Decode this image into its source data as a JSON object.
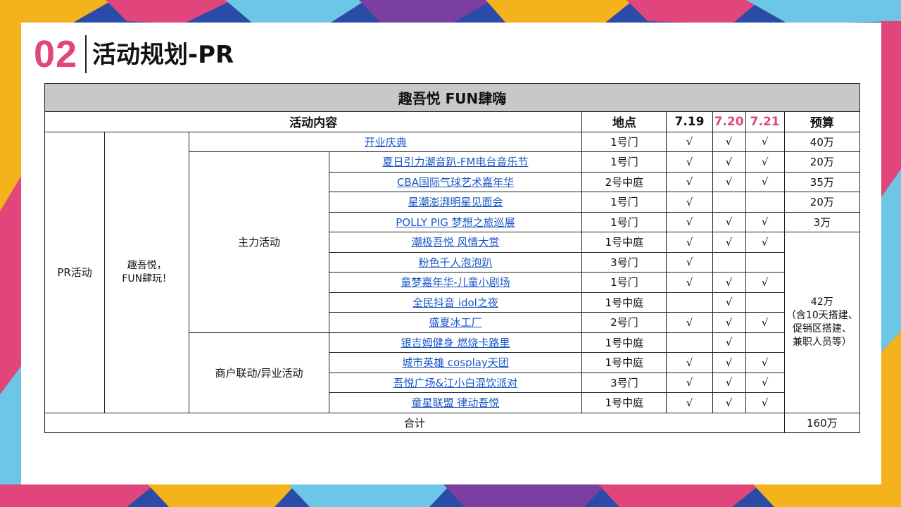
{
  "slide": {
    "number": "02",
    "title": "活动规划-PR"
  },
  "table": {
    "title": "趣吾悦 FUN肆嗨",
    "headers": {
      "content": "活动内容",
      "location": "地点",
      "d1": "7.19",
      "d2": "7.20",
      "d3": "7.21",
      "budget": "预算"
    },
    "category": "PR活动",
    "theme": "趣吾悦，\nFUN肆玩！",
    "groups": {
      "main": "主力活动",
      "merchant": "商户联动/异业活动"
    },
    "check": "√",
    "rows": [
      {
        "name": "开业庆典",
        "location": "1号门",
        "d1": "√",
        "d2": "√",
        "d3": "√",
        "budget": "40万"
      },
      {
        "name": "夏日引力潮音趴-FM电台音乐节",
        "location": "1号门",
        "d1": "√",
        "d2": "√",
        "d3": "√",
        "budget": "20万"
      },
      {
        "name": "CBA国际气球艺术嘉年华",
        "location": "2号中庭",
        "d1": "√",
        "d2": "√",
        "d3": "√",
        "budget": "35万"
      },
      {
        "name": "星潮澎湃明星见面会",
        "location": "1号门",
        "d1": "√",
        "d2": "",
        "d3": "",
        "budget": "20万"
      },
      {
        "name": "POLLY PIG 梦想之旅巡展",
        "location": "1号门",
        "d1": "√",
        "d2": "√",
        "d3": "√",
        "budget": "3万"
      },
      {
        "name": "潮极吾悦 风情大赏",
        "location": "1号中庭",
        "d1": "√",
        "d2": "√",
        "d3": "√"
      },
      {
        "name": "粉色千人泡泡趴",
        "location": "3号门",
        "d1": "√",
        "d2": "",
        "d3": ""
      },
      {
        "name": "童梦嘉年华-儿童小剧场",
        "location": "1号门",
        "d1": "√",
        "d2": "√",
        "d3": "√"
      },
      {
        "name": "全民抖音 idol之夜",
        "location": "1号中庭",
        "d1": "",
        "d2": "√",
        "d3": ""
      },
      {
        "name": "盛夏冰工厂",
        "location": "2号门",
        "d1": "√",
        "d2": "√",
        "d3": "√"
      },
      {
        "name": "银吉姆健身 燃烧卡路里",
        "location": "1号中庭",
        "d1": "",
        "d2": "√",
        "d3": ""
      },
      {
        "name": "城市英雄 cosplay天团",
        "location": "1号中庭",
        "d1": "√",
        "d2": "√",
        "d3": "√"
      },
      {
        "name": "吾悦广场&江小白混饮派对",
        "location": "3号门",
        "d1": "√",
        "d2": "√",
        "d3": "√"
      },
      {
        "name": "童星联盟 律动吾悦",
        "location": "1号中庭",
        "d1": "√",
        "d2": "√",
        "d3": "√"
      }
    ],
    "merged_budget": "42万\n（含10天搭建、\n促销区搭建、\n兼职人员等）",
    "total_label": "合计",
    "total_value": "160万"
  },
  "colors": {
    "accent": "#e0457b",
    "link": "#1a56c6",
    "header_bg": "#c8c8c8"
  }
}
